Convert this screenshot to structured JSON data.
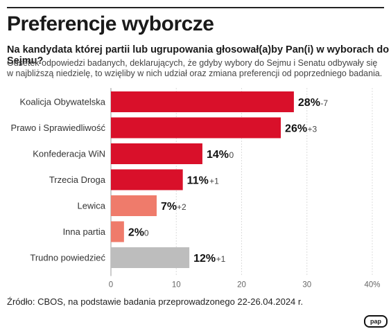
{
  "header": {
    "title": "Preferencje wyborcze",
    "subtitle": "Na kandydata której partii lub ugrupowania głosował(a)by Pan(i) w wyborach do Sejmu?",
    "description": "Odsetek odpowiedzi badanych, deklarujących, że gdyby wybory do Sejmu i Senatu odbywały się w najbliższą niedzielę, to wzięliby w nich udział oraz zmiana preferencji od poprzedniego badania."
  },
  "source": "Źródło: CBOS, na podstawie badania przeprowadzonego 22-26.04.2024 r.",
  "logo": "pap",
  "chart_data": {
    "type": "bar",
    "orientation": "horizontal",
    "categories": [
      "Koalicja Obywatelska",
      "Prawo i Sprawiedliwość",
      "Konfederacja WiN",
      "Trzecia Droga",
      "Lewica",
      "Inna partia",
      "Trudno powiedzieć"
    ],
    "values": [
      28,
      26,
      14,
      11,
      7,
      2,
      12
    ],
    "value_labels": [
      "28%",
      "26%",
      "14%",
      "11%",
      "7%",
      "2%",
      "12%"
    ],
    "changes": [
      "-7",
      "+3",
      "0",
      "+1",
      "+2",
      "0",
      "+1"
    ],
    "colors": [
      "#d9102a",
      "#d9102a",
      "#d9102a",
      "#d9102a",
      "#ef7b6b",
      "#ef7b6b",
      "#bdbdbd"
    ],
    "xlim": [
      0,
      40
    ],
    "xticks": [
      "0",
      "10",
      "20",
      "30",
      "40%"
    ],
    "grid": true
  }
}
